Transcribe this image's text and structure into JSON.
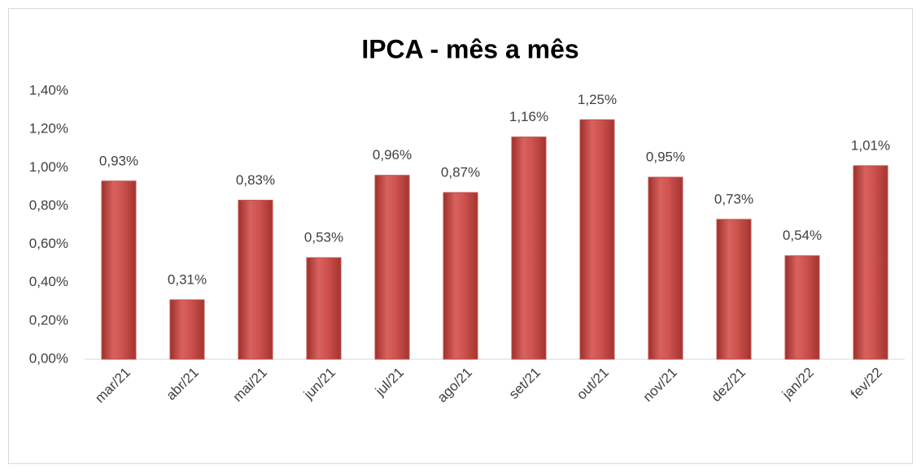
{
  "chart_data": {
    "type": "bar",
    "title": "IPCA - mês a mês",
    "categories": [
      "mar/21",
      "abr/21",
      "mai/21",
      "jun/21",
      "jul/21",
      "ago/21",
      "set/21",
      "out/21",
      "nov/21",
      "dez/21",
      "jan/22",
      "fev/22"
    ],
    "values": [
      0.93,
      0.31,
      0.83,
      0.53,
      0.96,
      0.87,
      1.16,
      1.25,
      0.95,
      0.73,
      0.54,
      1.01
    ],
    "value_labels": [
      "0,93%",
      "0,31%",
      "0,83%",
      "0,53%",
      "0,96%",
      "0,87%",
      "1,16%",
      "1,25%",
      "0,95%",
      "0,73%",
      "0,54%",
      "1,01%"
    ],
    "color": "#c0504d",
    "ylim": [
      0,
      1.4
    ],
    "yticks": [
      {
        "value": 0,
        "label": "0,00%"
      },
      {
        "value": 0.2,
        "label": "0,20%"
      },
      {
        "value": 0.4,
        "label": "0,40%"
      },
      {
        "value": 0.6,
        "label": "0,60%"
      },
      {
        "value": 0.8,
        "label": "0,80%"
      },
      {
        "value": 1.0,
        "label": "1,00%"
      },
      {
        "value": 1.2,
        "label": "1,20%"
      },
      {
        "value": 1.4,
        "label": "1,40%"
      }
    ],
    "grid": false
  }
}
